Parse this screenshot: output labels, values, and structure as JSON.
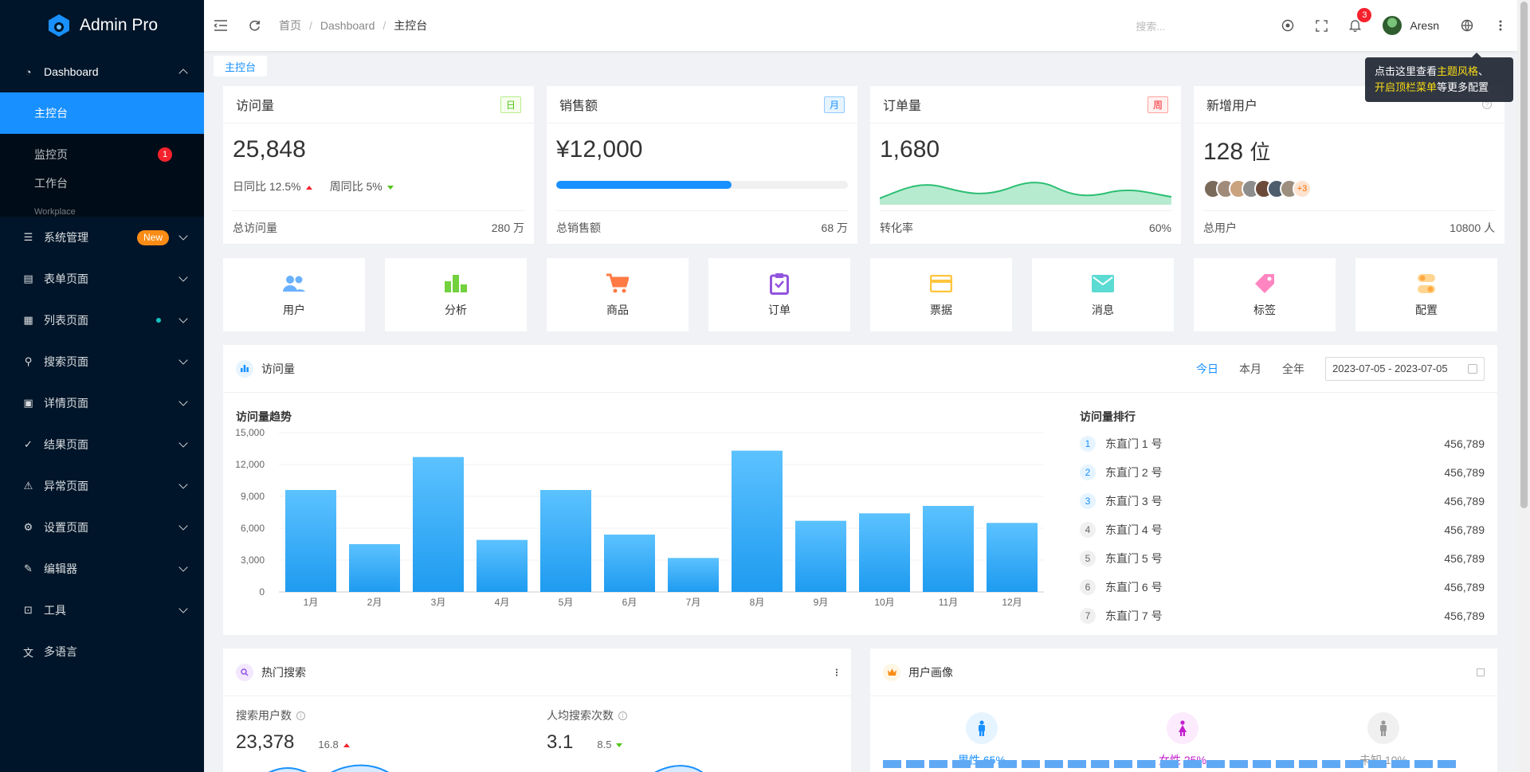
{
  "app": {
    "title": "Admin Pro"
  },
  "sidebar": {
    "dashboard": {
      "label": "Dashboard"
    },
    "dashboard_children": [
      {
        "label": "主控台",
        "active": true
      },
      {
        "label": "监控页",
        "badge": "1"
      },
      {
        "label": "工作台",
        "desc": "Workplace"
      }
    ],
    "items": [
      {
        "label": "系统管理",
        "icon": "sliders-icon",
        "badge_new": "New"
      },
      {
        "label": "表单页面",
        "icon": "form-icon"
      },
      {
        "label": "列表页面",
        "icon": "table-icon",
        "dot": true
      },
      {
        "label": "搜索页面",
        "icon": "search-icon"
      },
      {
        "label": "详情页面",
        "icon": "profile-icon"
      },
      {
        "label": "结果页面",
        "icon": "check-circle-icon"
      },
      {
        "label": "异常页面",
        "icon": "warning-icon"
      },
      {
        "label": "设置页面",
        "icon": "settings-icon"
      },
      {
        "label": "编辑器",
        "icon": "edit-icon"
      },
      {
        "label": "工具",
        "icon": "tool-icon"
      },
      {
        "label": "多语言",
        "icon": "translate-icon"
      }
    ]
  },
  "header": {
    "breadcrumb": [
      "首页",
      "Dashboard",
      "主控台"
    ],
    "search_placeholder": "搜索...",
    "notification_count": "3",
    "username": "Aresn"
  },
  "tooltip": {
    "part1": "点击这里查看",
    "hl1": "主题风格",
    "part2": "、",
    "hl2": "开启顶栏菜单",
    "part3": "等更多配置"
  },
  "tabs": {
    "current": "主控台"
  },
  "stats": [
    {
      "title": "访问量",
      "tag": "日",
      "tag_color": "#52c41a",
      "value": "25,848",
      "day_label": "日同比",
      "day_value": "12.5%",
      "week_label": "周同比",
      "week_value": "5%",
      "foot_label": "总访问量",
      "foot_value": "280 万"
    },
    {
      "title": "销售额",
      "tag": "月",
      "tag_color": "#1890ff",
      "value": "¥12,000",
      "progress": 0.6,
      "foot_label": "总销售额",
      "foot_value": "68 万"
    },
    {
      "title": "订单量",
      "tag": "周",
      "tag_color": "#f5222d",
      "value": "1,680",
      "foot_label": "转化率",
      "foot_value": "60%"
    },
    {
      "title": "新增用户",
      "value": "128",
      "unit": "位",
      "more": "+3",
      "foot_label": "总用户",
      "foot_value": "10800 人"
    }
  ],
  "shortcuts": [
    {
      "label": "用户",
      "icon": "users-icon",
      "color": "#69b1ff"
    },
    {
      "label": "分析",
      "icon": "bar-chart-icon",
      "color": "#73d13d"
    },
    {
      "label": "商品",
      "icon": "cart-icon",
      "color": "#ff7a45"
    },
    {
      "label": "订单",
      "icon": "clipboard-icon",
      "color": "#9254de"
    },
    {
      "label": "票据",
      "icon": "card-icon",
      "color": "#ffc53d"
    },
    {
      "label": "消息",
      "icon": "mail-icon",
      "color": "#5cdbd3"
    },
    {
      "label": "标签",
      "icon": "tag-icon",
      "color": "#ff85c0"
    },
    {
      "label": "配置",
      "icon": "config-icon",
      "color": "#ffa940"
    }
  ],
  "visits": {
    "panel_title": "访问量",
    "ranges": [
      "今日",
      "本月",
      "全年"
    ],
    "active_range": "今日",
    "date_range": "2023-07-05 - 2023-07-05",
    "chart_title": "访问量趋势",
    "rank_title": "访问量排行",
    "ranking": [
      {
        "rank": "1",
        "name": "东直门 1 号",
        "value": "456,789"
      },
      {
        "rank": "2",
        "name": "东直门 2 号",
        "value": "456,789"
      },
      {
        "rank": "3",
        "name": "东直门 3 号",
        "value": "456,789"
      },
      {
        "rank": "4",
        "name": "东直门 4 号",
        "value": "456,789"
      },
      {
        "rank": "5",
        "name": "东直门 5 号",
        "value": "456,789"
      },
      {
        "rank": "6",
        "name": "东直门 6 号",
        "value": "456,789"
      },
      {
        "rank": "7",
        "name": "东直门 7 号",
        "value": "456,789"
      }
    ]
  },
  "chart_data": {
    "type": "bar",
    "categories": [
      "1月",
      "2月",
      "3月",
      "4月",
      "5月",
      "6月",
      "7月",
      "8月",
      "9月",
      "10月",
      "11月",
      "12月"
    ],
    "values": [
      9600,
      4500,
      12700,
      4900,
      9600,
      5400,
      3200,
      13300,
      6700,
      7400,
      8100,
      6500
    ],
    "ylim": [
      0,
      15000
    ],
    "yticks": [
      "15,000",
      "12,000",
      "9,000",
      "6,000",
      "3,000",
      "0"
    ],
    "color": "#1890ff",
    "grid": true
  },
  "hot_search": {
    "title": "热门搜索",
    "kpi1_label": "搜索用户数",
    "kpi1_value": "23,378",
    "kpi1_trend": "16.8",
    "kpi2_label": "人均搜索次数",
    "kpi2_value": "3.1",
    "kpi2_trend": "8.5"
  },
  "persona": {
    "title": "用户画像",
    "items": [
      {
        "label": "男性 65%",
        "color": "#1890ff",
        "icon": "male-icon"
      },
      {
        "label": "女性 25%",
        "color": "#c41dce",
        "icon": "female-icon"
      },
      {
        "label": "未知 10%",
        "color": "#999999",
        "icon": "unknown-icon"
      }
    ]
  }
}
